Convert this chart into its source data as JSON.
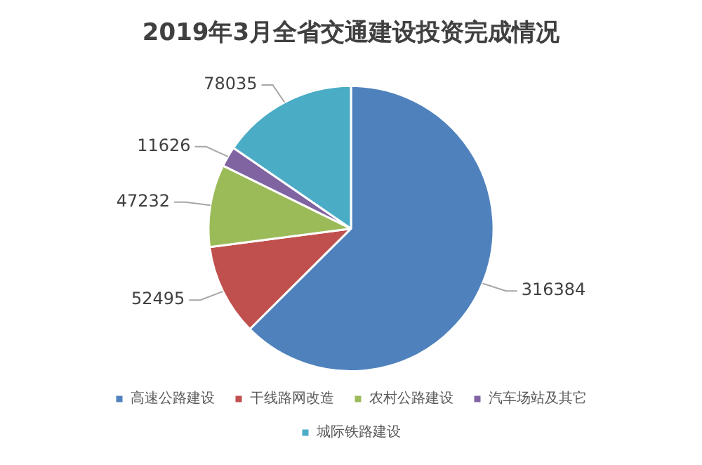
{
  "chart_data": {
    "type": "pie",
    "title": "2019年3月全省交通建设投资完成情况",
    "categories": [
      "高速公路建设",
      "干线路网改造",
      "农村公路建设",
      "汽车场站及其它",
      "城际铁路建设"
    ],
    "values": [
      316384,
      52495,
      47232,
      11626,
      78035
    ],
    "colors": [
      "#4f81bd",
      "#c0504d",
      "#9bbb59",
      "#8064a2",
      "#4bacc6"
    ],
    "data_labels": true,
    "legend": "bottom"
  }
}
